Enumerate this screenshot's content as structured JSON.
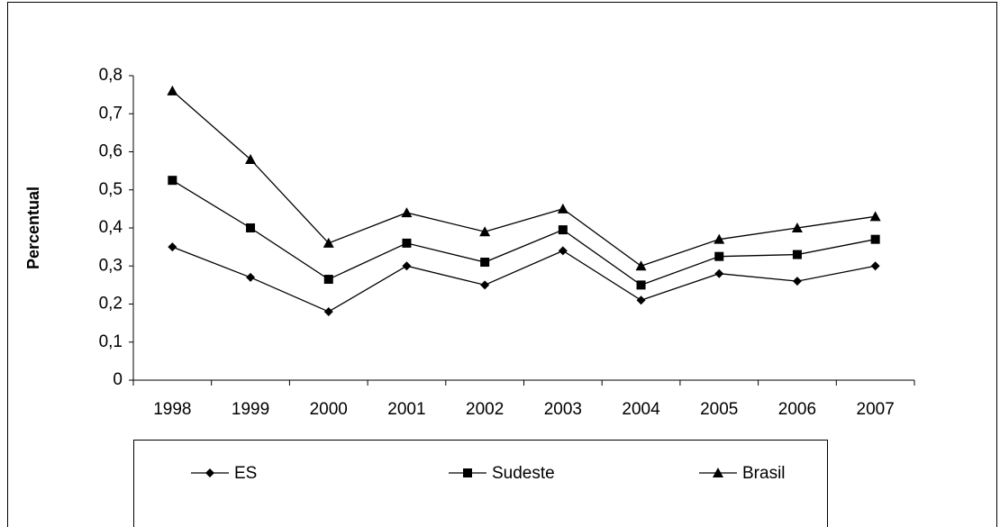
{
  "chart_data": {
    "type": "line",
    "y_label": "Percentual",
    "categories": [
      "1998",
      "1999",
      "2000",
      "2001",
      "2002",
      "2003",
      "2004",
      "2005",
      "2006",
      "2007"
    ],
    "series": [
      {
        "name": "ES",
        "color": "#000000",
        "marker": "diamond",
        "values": [
          0.35,
          0.27,
          0.18,
          0.3,
          0.25,
          0.34,
          0.21,
          0.28,
          0.26,
          0.3
        ]
      },
      {
        "name": "Sudeste",
        "color": "#000000",
        "marker": "square",
        "values": [
          0.525,
          0.4,
          0.265,
          0.36,
          0.31,
          0.395,
          0.25,
          0.325,
          0.33,
          0.37
        ]
      },
      {
        "name": "Brasil",
        "color": "#000000",
        "marker": "triangle",
        "values": [
          0.76,
          0.58,
          0.36,
          0.44,
          0.39,
          0.45,
          0.3,
          0.37,
          0.4,
          0.43
        ]
      }
    ],
    "ylim": [
      0,
      0.8
    ],
    "yticks": [
      0,
      {
        "value": 0.1,
        "label": "0,1"
      },
      {
        "value": 0.2,
        "label": "0,2"
      },
      {
        "value": 0.3,
        "label": "0,3"
      },
      {
        "value": 0.4,
        "label": "0,4"
      },
      {
        "value": 0.5,
        "label": "0,5"
      },
      {
        "value": 0.6,
        "label": "0,6"
      },
      {
        "value": 0.7,
        "label": "0,7"
      },
      {
        "value": 0.8,
        "label": "0,8"
      }
    ],
    "grid": false,
    "legend": "bottom"
  }
}
